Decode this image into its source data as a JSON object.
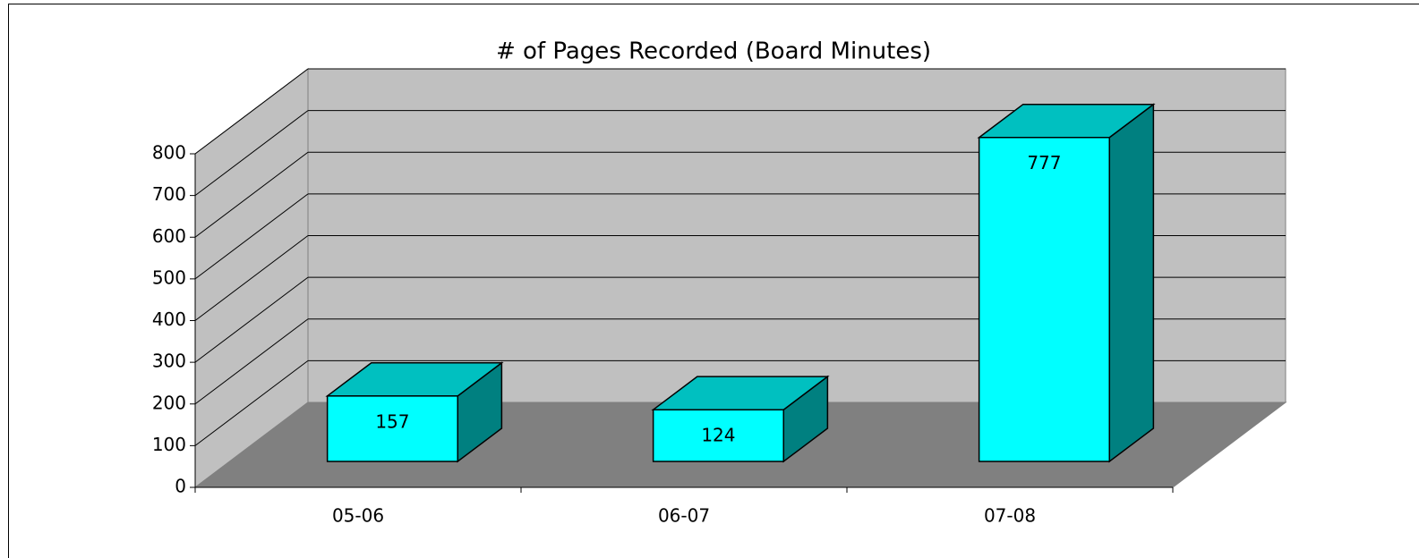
{
  "chart_data": {
    "type": "bar3d",
    "title": "# of Pages Recorded (Board Minutes)",
    "categories": [
      "05-06",
      "06-07",
      "07-08"
    ],
    "values": [
      157,
      124,
      777
    ],
    "color": "#00ffff",
    "top_color": "#00c0c0",
    "side_color": "#008080",
    "ylim": [
      0,
      800
    ],
    "yticks": [
      0,
      100,
      200,
      300,
      400,
      500,
      600,
      700,
      800
    ],
    "grid": true
  }
}
